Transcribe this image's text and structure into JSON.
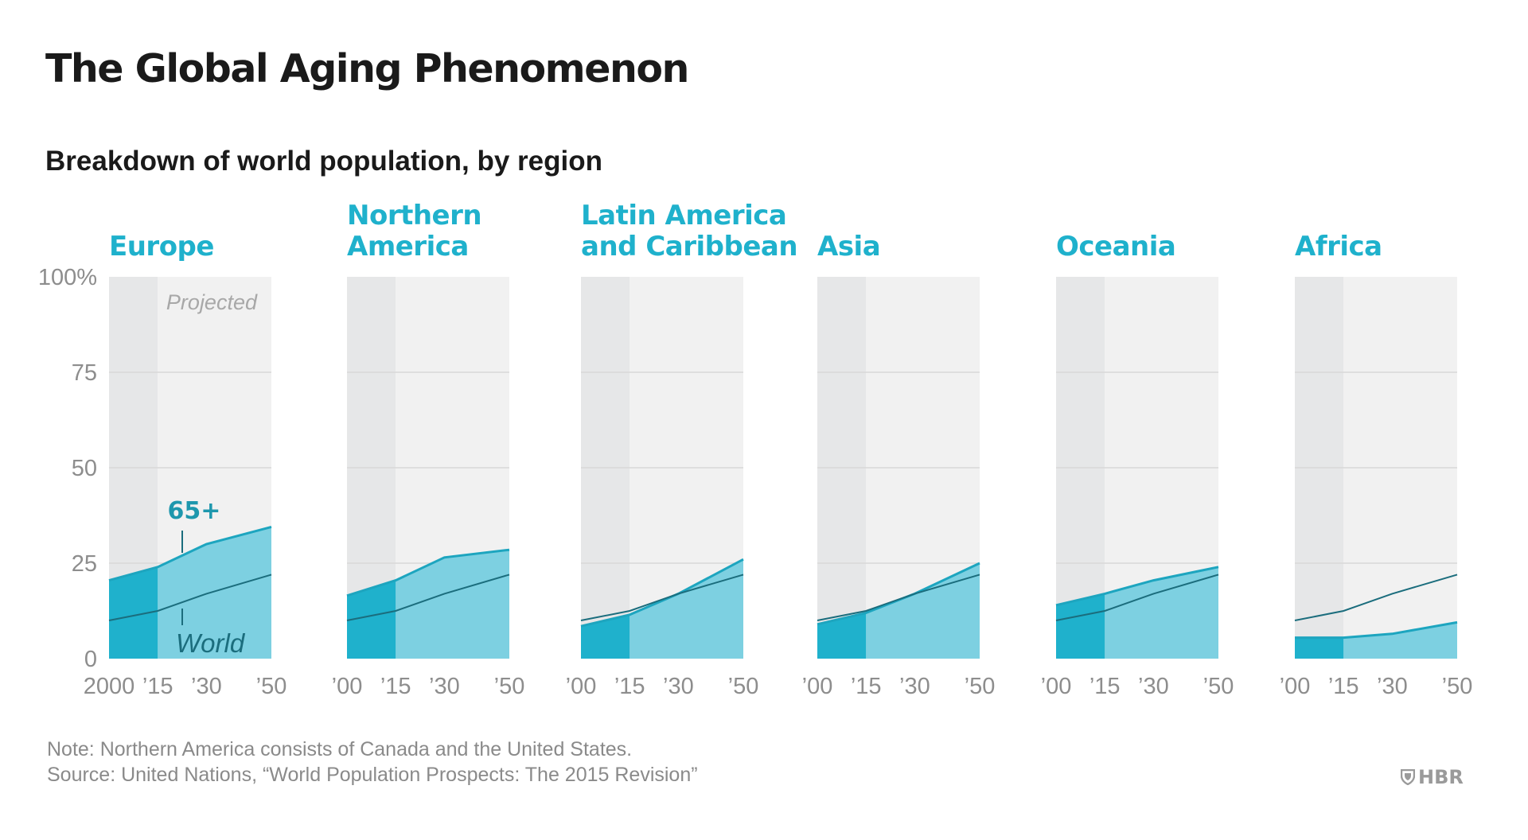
{
  "title": "The Global Aging Phenomenon",
  "subtitle": "Breakdown of world population, by region",
  "notes": {
    "note": "Note: Northern America consists of Canada and the United States.",
    "source": "Source: United Nations, “World Population Prospects: The 2015 Revision”"
  },
  "brand": {
    "logo_text": "HBR",
    "logo_icon": "shield-icon"
  },
  "colors": {
    "historical_bg": "#e6e7e8",
    "projected_bg": "#f1f1f1",
    "area_historical": "#1fb1cc",
    "area_projected": "#7dd0e1",
    "area_line": "#1da5bf",
    "world_line": "#1b6d7d",
    "label": "#1fb1cc"
  },
  "chart_data": {
    "type": "area",
    "y_ticks": [
      "100%",
      "75",
      "50",
      "25",
      "0"
    ],
    "ylim": [
      0,
      100
    ],
    "x": [
      2000,
      2015,
      2030,
      2050
    ],
    "projection_start": 2015,
    "projected_label": "Projected",
    "annotations": {
      "series_65": "65+",
      "world": "World"
    },
    "world": [
      10,
      12.5,
      17,
      22
    ],
    "regions": [
      {
        "name": "Europe",
        "name_lines": [
          "Europe"
        ],
        "x_tick_labels": [
          "2000",
          "’15",
          "’30",
          "’50"
        ],
        "values": [
          20.5,
          24,
          30,
          34.5
        ]
      },
      {
        "name": "Northern America",
        "name_lines": [
          "Northern",
          "America"
        ],
        "x_tick_labels": [
          "’00",
          "’15",
          "’30",
          "’50"
        ],
        "values": [
          16.5,
          20.5,
          26.5,
          28.5
        ]
      },
      {
        "name": "Latin America and Caribbean",
        "name_lines": [
          "Latin America",
          "and Caribbean"
        ],
        "x_tick_labels": [
          "’00",
          "’15",
          "’30",
          "’50"
        ],
        "values": [
          8.5,
          11.5,
          17,
          26
        ]
      },
      {
        "name": "Asia",
        "name_lines": [
          "Asia"
        ],
        "x_tick_labels": [
          "’00",
          "’15",
          "’30",
          "’50"
        ],
        "values": [
          9,
          12,
          17,
          25
        ]
      },
      {
        "name": "Oceania",
        "name_lines": [
          "Oceania"
        ],
        "x_tick_labels": [
          "’00",
          "’15",
          "’30",
          "’50"
        ],
        "values": [
          14,
          17,
          20.5,
          24
        ]
      },
      {
        "name": "Africa",
        "name_lines": [
          "Africa"
        ],
        "x_tick_labels": [
          "’00",
          "’15",
          "’30",
          "’50"
        ],
        "values": [
          5.5,
          5.5,
          6.5,
          9.5
        ]
      }
    ]
  }
}
